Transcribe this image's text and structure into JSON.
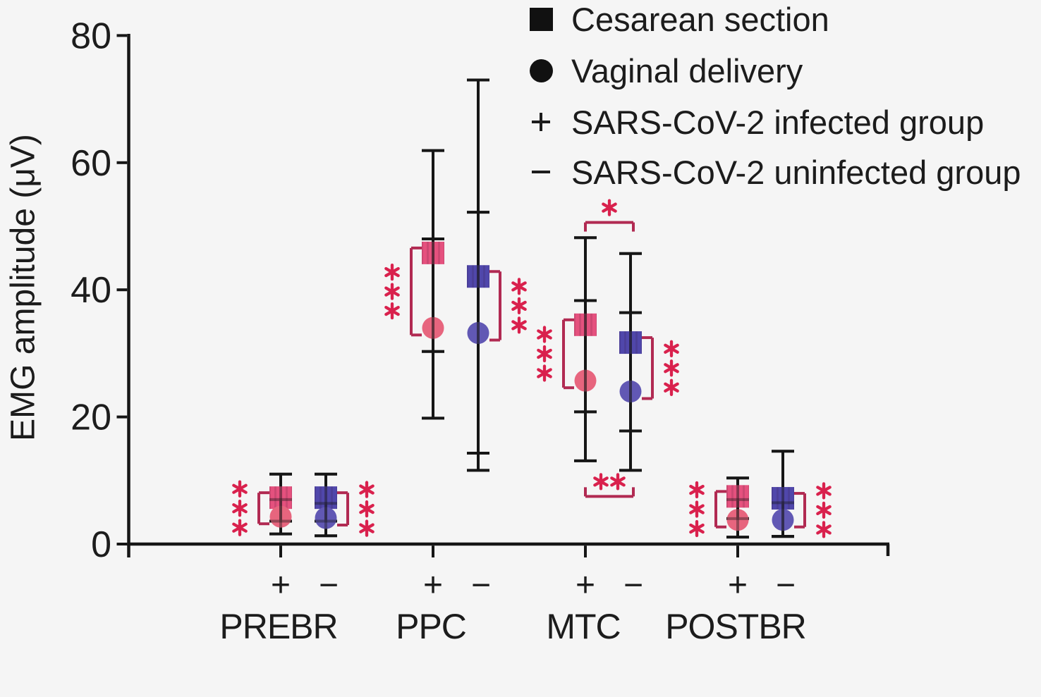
{
  "figure": {
    "background": "#f5f5f5"
  },
  "legend": {
    "items": [
      {
        "symbol": "square",
        "label": "Cesarean section"
      },
      {
        "symbol": "circle",
        "label": "Vaginal delivery"
      },
      {
        "symbol": "plus",
        "label": "SARS-CoV-2 infected group"
      },
      {
        "symbol": "minus",
        "label": "SARS-CoV-2 uninfected group"
      }
    ]
  },
  "chart_data": {
    "type": "scatter",
    "title": "",
    "xlabel": "",
    "ylabel": "EMG amplitude (μV)",
    "ylim": [
      0,
      80
    ],
    "yticks": [
      0,
      20,
      40,
      60,
      80
    ],
    "groups": [
      "PREBR",
      "PPC",
      "MTC",
      "POSTBR"
    ],
    "sign_labels": [
      "+",
      "−"
    ],
    "series_legend": {
      "square": "Cesarean section",
      "circle": "Vaginal delivery"
    },
    "columns": [
      {
        "group": "PREBR",
        "sign": "+",
        "square": {
          "mean": 7.3,
          "lo": 3.6,
          "hi": 11.0
        },
        "circle": {
          "mean": 4.3,
          "lo": 1.6,
          "hi": 7.0
        }
      },
      {
        "group": "PREBR",
        "sign": "−",
        "square": {
          "mean": 7.3,
          "lo": 3.6,
          "hi": 11.0
        },
        "circle": {
          "mean": 4.1,
          "lo": 1.3,
          "hi": 6.4
        }
      },
      {
        "group": "PPC",
        "sign": "+",
        "square": {
          "mean": 45.8,
          "lo": 30.3,
          "hi": 61.9
        },
        "circle": {
          "mean": 34.0,
          "lo": 19.8,
          "hi": 48.0
        }
      },
      {
        "group": "PPC",
        "sign": "−",
        "square": {
          "mean": 42.1,
          "lo": 11.6,
          "hi": 73.0
        },
        "circle": {
          "mean": 33.2,
          "lo": 14.3,
          "hi": 52.2
        }
      },
      {
        "group": "MTC",
        "sign": "+",
        "square": {
          "mean": 34.5,
          "lo": 20.8,
          "hi": 48.2
        },
        "circle": {
          "mean": 25.7,
          "lo": 13.1,
          "hi": 38.3
        }
      },
      {
        "group": "MTC",
        "sign": "−",
        "square": {
          "mean": 31.7,
          "lo": 17.8,
          "hi": 45.7
        },
        "circle": {
          "mean": 24.0,
          "lo": 11.6,
          "hi": 36.4
        }
      },
      {
        "group": "POSTBR",
        "sign": "+",
        "square": {
          "mean": 7.5,
          "lo": 4.0,
          "hi": 10.4
        },
        "circle": {
          "mean": 3.8,
          "lo": 1.1,
          "hi": 7.0
        }
      },
      {
        "group": "POSTBR",
        "sign": "−",
        "square": {
          "mean": 7.2,
          "lo": 1.2,
          "hi": 14.6
        },
        "circle": {
          "mean": 3.8,
          "lo": 1.2,
          "hi": 6.5
        }
      }
    ],
    "significance": {
      "pair_brackets": [
        {
          "column": 0,
          "side": "left",
          "stars": "***"
        },
        {
          "column": 1,
          "side": "right",
          "stars": "***"
        },
        {
          "column": 2,
          "side": "left",
          "stars": "***"
        },
        {
          "column": 3,
          "side": "right",
          "stars": "***"
        },
        {
          "column": 4,
          "side": "left",
          "stars": "***"
        },
        {
          "column": 5,
          "side": "right",
          "stars": "***"
        },
        {
          "column": 6,
          "side": "left",
          "stars": "***"
        },
        {
          "column": 7,
          "side": "right",
          "stars": "***"
        }
      ],
      "span_brackets": [
        {
          "group": "MTC",
          "location": "above",
          "stars": "*",
          "line_value": 50.6
        },
        {
          "group": "MTC",
          "location": "below",
          "stars": "**",
          "line_value": 7.5
        }
      ]
    },
    "colors": {
      "infected_square": "#e5517e",
      "infected_circle": "#e7657e",
      "uninfected_square": "#5047ab",
      "uninfected_circle": "#6158b4",
      "error_bar": "#161616",
      "bracket": "#b12a52",
      "star": "#d9214d",
      "axis": "#161616",
      "text": "#1c1c1c"
    }
  }
}
